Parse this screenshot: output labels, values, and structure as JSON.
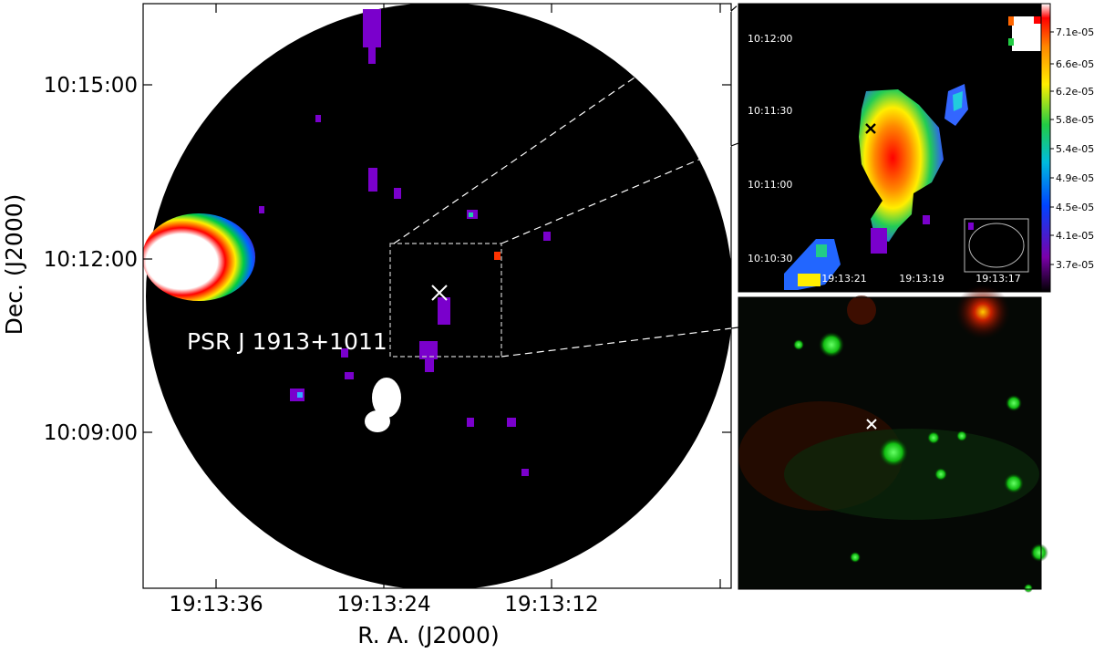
{
  "main_panel": {
    "xlabel": "R. A. (J2000)",
    "ylabel": "Dec. (J2000)",
    "x_ticks": [
      "19:13:36",
      "19:13:24",
      "19:13:12"
    ],
    "y_ticks": [
      "10:15:00",
      "10:12:00",
      "10:09:00"
    ],
    "source_label": "PSR J 1913+1011"
  },
  "zoom_inset": {
    "ra_ticks": [
      "19:13:21",
      "19:13:19",
      "19:13:17"
    ],
    "dec_ticks": [
      "10:12:00",
      "10:11:30",
      "10:11:00",
      "10:10:30"
    ]
  },
  "colorbar": {
    "ticks": [
      "7.1e-05",
      "6.6e-05",
      "6.2e-05",
      "5.8e-05",
      "5.4e-05",
      "4.9e-05",
      "4.5e-05",
      "4.1e-05",
      "3.7e-05"
    ]
  },
  "colors": {
    "background": "#000000",
    "pulsar_marker": "#ffffff",
    "frame": "#000000"
  }
}
